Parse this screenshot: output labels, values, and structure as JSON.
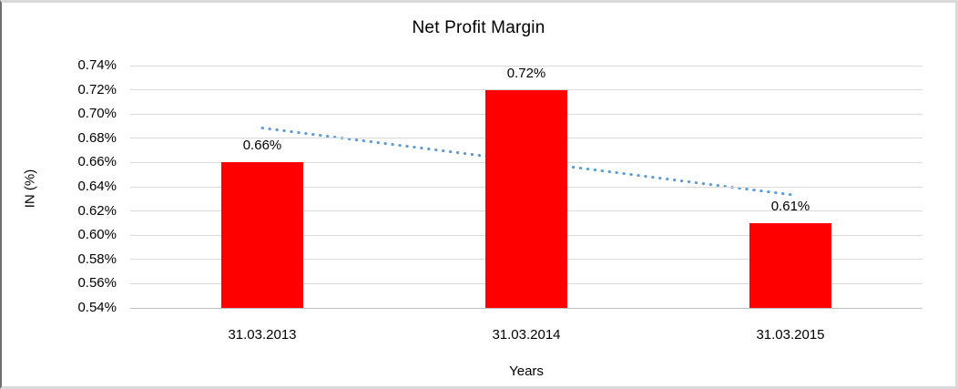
{
  "chart_data": {
    "type": "bar",
    "title": "Net Profit Margin",
    "categories": [
      "31.03.2013",
      "31.03.2014",
      "31.03.2015"
    ],
    "values": [
      0.66,
      0.72,
      0.61
    ],
    "data_labels": [
      "0.66%",
      "0.72%",
      "0.61%"
    ],
    "xlabel": "Years",
    "ylabel": "IN (%)",
    "ylim": [
      0.54,
      0.74
    ],
    "ytick_step": 0.02,
    "ytick_labels": [
      "0.74%",
      "0.72%",
      "0.70%",
      "0.68%",
      "0.66%",
      "0.64%",
      "0.62%",
      "0.60%",
      "0.58%",
      "0.56%",
      "0.54%"
    ],
    "grid": true,
    "legend": "none",
    "bar_color": "#ff0000",
    "gridline_color": "#d9d9d9",
    "trendline": {
      "kind": "linear",
      "style": "dotted",
      "color": "#5b9bd5",
      "start_value": 0.6885,
      "end_value": 0.6335
    }
  }
}
